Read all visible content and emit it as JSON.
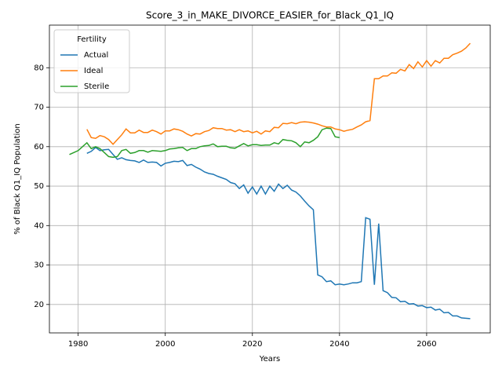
{
  "chart_data": {
    "type": "line",
    "title": "Score_3_in_MAKE_DIVORCE_EASIER_for_Black_Q1_IQ",
    "xlabel": "Years",
    "ylabel": "% of Black Q1_IQ Population",
    "legend_title": "Fertility",
    "legend_loc": "upper left",
    "grid": true,
    "x": [
      1978,
      1979,
      1980,
      1981,
      1982,
      1983,
      1984,
      1985,
      1986,
      1987,
      1988,
      1989,
      1990,
      1991,
      1992,
      1993,
      1994,
      1995,
      1996,
      1997,
      1998,
      1999,
      2000,
      2001,
      2002,
      2003,
      2004,
      2005,
      2006,
      2007,
      2008,
      2009,
      2010,
      2011,
      2012,
      2013,
      2014,
      2015,
      2016,
      2017,
      2018,
      2019,
      2020,
      2021,
      2022,
      2023,
      2024,
      2025,
      2026,
      2027,
      2028,
      2029,
      2030,
      2031,
      2032,
      2033,
      2034,
      2035,
      2036,
      2037,
      2038,
      2039,
      2040,
      2041,
      2042,
      2043,
      2044,
      2045,
      2046,
      2047,
      2048,
      2049,
      2050,
      2051,
      2052,
      2053,
      2054,
      2055,
      2056,
      2057,
      2058,
      2059,
      2060,
      2061,
      2062,
      2063,
      2064,
      2065,
      2066,
      2067,
      2068,
      2069,
      2070
    ],
    "series": [
      {
        "name": "Actual",
        "color": "#1f77b4",
        "values": [
          null,
          null,
          null,
          null,
          58.3,
          58.8,
          59.8,
          59,
          59.2,
          59.3,
          58,
          56.8,
          57.2,
          56.7,
          56.5,
          56.4,
          56,
          56.6,
          56,
          56.1,
          56,
          55.1,
          55.8,
          56,
          56.3,
          56.2,
          56.5,
          55.2,
          55.5,
          54.8,
          54.3,
          53.6,
          53.2,
          53,
          52.5,
          52.1,
          51.7,
          50.9,
          50.6,
          49.4,
          50.3,
          48.2,
          49.8,
          48,
          50,
          48,
          50,
          48.7,
          50.5,
          49.4,
          50.2,
          49,
          48.5,
          47.5,
          46.2,
          45,
          44,
          27.5,
          27,
          25.8,
          26,
          25,
          25.2,
          25,
          25.2,
          25.5,
          25.5,
          25.8,
          42,
          41.6,
          25,
          40.5,
          23.5,
          23,
          21.8,
          21.7,
          20.7,
          20.8,
          20.1,
          20.2,
          19.6,
          19.7,
          19.2,
          19.3,
          18.6,
          18.8,
          17.9,
          18,
          17.1,
          17.1,
          16.6,
          16.5,
          16.4
        ]
      },
      {
        "name": "Ideal",
        "color": "#ff7f0e",
        "values": [
          null,
          null,
          null,
          null,
          64.4,
          62.3,
          62.1,
          62.8,
          62.5,
          61.8,
          60.6,
          61.8,
          63,
          64.5,
          63.5,
          63.5,
          64.2,
          63.6,
          63.6,
          64.2,
          63.8,
          63.2,
          64,
          64,
          64.5,
          64.3,
          63.9,
          63.2,
          62.7,
          63.3,
          63.2,
          63.8,
          64.1,
          64.8,
          64.6,
          64.6,
          64.2,
          64.3,
          63.8,
          64.3,
          63.8,
          64,
          63.5,
          63.9,
          63.2,
          64,
          63.8,
          64.9,
          64.8,
          65.9,
          65.8,
          66.1,
          65.8,
          66.2,
          66.3,
          66.2,
          66,
          65.7,
          65.3,
          65,
          65,
          64.5,
          64.3,
          63.9,
          64.2,
          64.4,
          65,
          65.5,
          66.3,
          66.6,
          77.2,
          77.2,
          77.9,
          77.9,
          78.7,
          78.6,
          79.6,
          79.2,
          80.8,
          79.8,
          81.5,
          80.2,
          81.8,
          80.4,
          81.8,
          81.2,
          82.4,
          82.4,
          83.3,
          83.7,
          84.2,
          85,
          86.2
        ]
      },
      {
        "name": "Sterile",
        "color": "#2ca02c",
        "values": [
          58,
          58.5,
          59,
          60,
          61,
          59.5,
          60,
          59.5,
          58.5,
          57.5,
          57.3,
          57.5,
          59,
          59.3,
          58.3,
          58.5,
          59,
          59,
          58.6,
          59,
          58.9,
          58.8,
          59,
          59.4,
          59.5,
          59.7,
          59.8,
          59,
          59.5,
          59.5,
          60,
          60.2,
          60.3,
          60.7,
          60,
          60.1,
          60.1,
          59.7,
          59.6,
          60.2,
          60.8,
          60.2,
          60.5,
          60.5,
          60.3,
          60.4,
          60.4,
          61,
          60.7,
          61.8,
          61.6,
          61.5,
          61,
          60,
          61.2,
          61,
          61.6,
          62.5,
          64.3,
          64.7,
          64.6,
          62.5,
          62.3,
          null,
          null,
          null,
          null,
          null,
          null,
          null,
          null,
          null,
          null,
          null,
          null,
          null,
          null,
          null,
          null,
          null,
          null,
          null,
          null,
          null,
          null,
          null,
          null,
          null,
          null,
          null,
          null,
          null,
          null
        ]
      }
    ],
    "xlim": [
      1973.4,
      2074.6
    ],
    "ylim": [
      12.8,
      90.8
    ],
    "xticks": [
      1980,
      2000,
      2020,
      2040,
      2060
    ],
    "yticks": [
      20,
      30,
      40,
      50,
      60,
      70,
      80
    ]
  }
}
